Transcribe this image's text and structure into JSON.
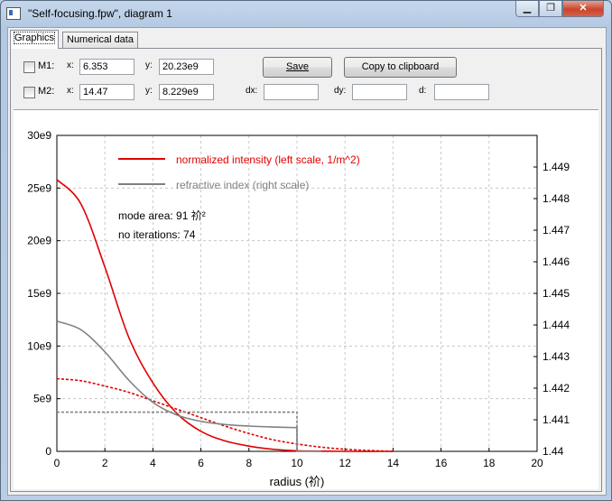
{
  "window": {
    "title": "\"Self-focusing.fpw\", diagram 1",
    "min_glyph": "▁",
    "max_glyph": "❐",
    "close_glyph": "✕"
  },
  "tabs": [
    {
      "label": "Graphics",
      "active": true
    },
    {
      "label": "Numerical data",
      "active": false
    }
  ],
  "markers": {
    "m1": {
      "label": "M1:",
      "checked": false,
      "x_label": "x:",
      "x_value": "6.353",
      "y_label": "y:",
      "y_value": "20.23e9"
    },
    "m2": {
      "label": "M2:",
      "checked": false,
      "x_label": "x:",
      "x_value": "14.47",
      "y_label": "y:",
      "y_value": "8.229e9"
    }
  },
  "buttons": {
    "save": "Save",
    "copy": "Copy to clipboard"
  },
  "deltas": {
    "dx_label": "dx:",
    "dx_value": "",
    "dy_label": "dy:",
    "dy_value": "",
    "d_label": "d:",
    "d_value": ""
  },
  "colors": {
    "intensity": "#e00000",
    "refractive": "#808080",
    "grid": "#c8c8c8"
  },
  "chart_data": {
    "type": "line",
    "xlabel": "radius (祄)",
    "xlim": [
      0,
      20
    ],
    "ylim_left": [
      0,
      30000000000
    ],
    "ylim_right": [
      1.44,
      1.45
    ],
    "x_ticks": [
      "0",
      "2",
      "4",
      "6",
      "8",
      "10",
      "12",
      "14",
      "16",
      "18",
      "20"
    ],
    "y_left_ticks": [
      "0",
      "5e9",
      "10e9",
      "15e9",
      "20e9",
      "25e9",
      "30e9"
    ],
    "y_right_ticks": [
      "1.44",
      "1.441",
      "1.442",
      "1.443",
      "1.444",
      "1.445",
      "1.446",
      "1.447",
      "1.448",
      "1.449"
    ],
    "grid": true,
    "annotations": [
      "mode area: 91 祄²",
      "no iterations: 74"
    ],
    "legend": {
      "placement": "top-center",
      "entries": [
        {
          "label": "normalized intensity (left scale, 1/m^2)",
          "color": "#e00000"
        },
        {
          "label": "refractive index (right scale)",
          "color": "#808080"
        }
      ]
    },
    "series": [
      {
        "name": "normalized intensity (left scale, 1/m^2)",
        "axis": "left",
        "style": "solid",
        "color": "#e00000",
        "x": [
          0,
          1,
          2,
          3,
          4,
          5,
          6,
          7,
          8,
          9,
          10,
          11,
          12,
          14
        ],
        "y": [
          25800000000,
          23500000000,
          17500000000,
          10800000000,
          6500000000,
          3600000000,
          1900000000,
          1000000000,
          500000000,
          200000000,
          50000000,
          20000000,
          0,
          0
        ]
      },
      {
        "name": "",
        "axis": "left",
        "style": "dashed",
        "color": "#e00000",
        "x": [
          0,
          1,
          2,
          3,
          4,
          5,
          6,
          7,
          8,
          9,
          10,
          11,
          12,
          13,
          14
        ],
        "y": [
          6900000000,
          6700000000,
          6200000000,
          5600000000,
          4800000000,
          4000000000,
          3200000000,
          2400000000,
          1700000000,
          1100000000,
          700000000,
          400000000,
          200000000,
          80000000,
          0
        ]
      },
      {
        "name": "refractive index (right scale)",
        "axis": "right",
        "style": "solid",
        "color": "#808080",
        "x": [
          0,
          1,
          2,
          3,
          4,
          5,
          6,
          7,
          8,
          9,
          10,
          10,
          11
        ],
        "y": [
          1.44412,
          1.44385,
          1.44315,
          1.44225,
          1.44155,
          1.44115,
          1.44095,
          1.44085,
          1.4408,
          1.44077,
          1.44075,
          1.44,
          1.44
        ]
      },
      {
        "name": "",
        "axis": "right",
        "style": "dashed",
        "color": "#808080",
        "x": [
          0,
          10,
          10
        ],
        "y": [
          1.44124,
          1.44124,
          1.44
        ]
      }
    ]
  }
}
